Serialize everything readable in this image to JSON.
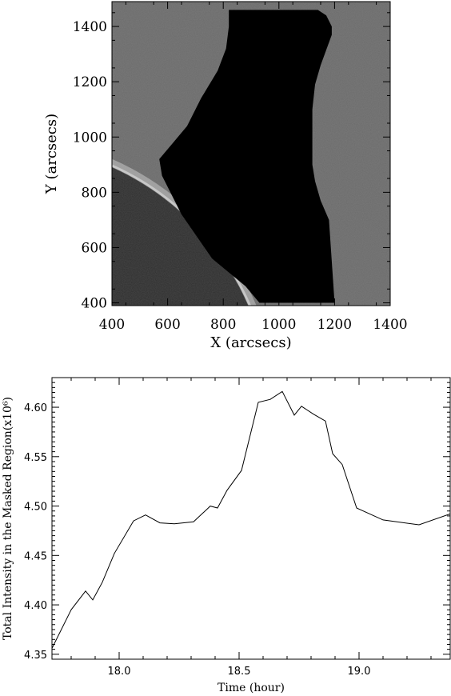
{
  "chart_data": [
    {
      "type": "image",
      "xlabel": "X (arcsecs)",
      "ylabel": "Y (arcsecs)",
      "xlim": [
        400,
        1400
      ],
      "ylim": [
        390,
        1490
      ],
      "xticks": [
        400,
        600,
        800,
        1000,
        1200,
        1400
      ],
      "yticks": [
        400,
        600,
        800,
        1000,
        1200,
        1400
      ],
      "colors": {
        "background": "#6b6b6b",
        "disk": "#2e2e2e",
        "limb": "#c8c8c8",
        "mask": "#000000"
      },
      "solar_disk": {
        "center": [
          0,
          0
        ],
        "radius_arcsec": 970
      },
      "mask_polygon": [
        [
          820,
          1460
        ],
        [
          1140,
          1460
        ],
        [
          1170,
          1440
        ],
        [
          1190,
          1400
        ],
        [
          1190,
          1370
        ],
        [
          1150,
          1260
        ],
        [
          1130,
          1190
        ],
        [
          1120,
          1100
        ],
        [
          1120,
          900
        ],
        [
          1130,
          840
        ],
        [
          1150,
          770
        ],
        [
          1180,
          700
        ],
        [
          1200,
          400
        ],
        [
          930,
          400
        ],
        [
          880,
          460
        ],
        [
          760,
          560
        ],
        [
          650,
          720
        ],
        [
          580,
          860
        ],
        [
          570,
          920
        ],
        [
          620,
          980
        ],
        [
          670,
          1040
        ],
        [
          720,
          1140
        ],
        [
          780,
          1240
        ],
        [
          810,
          1320
        ],
        [
          820,
          1400
        ]
      ]
    },
    {
      "type": "line",
      "xlabel": "Time (hour)",
      "ylabel": "Total Intensity in the Masked Region(x10⁶)",
      "xlim": [
        17.72,
        19.38
      ],
      "ylim": [
        4.345,
        4.63
      ],
      "xticks": [
        18.0,
        18.5,
        19.0
      ],
      "xtick_labels": [
        "18.0",
        "18.5",
        "19.0"
      ],
      "yticks": [
        4.35,
        4.4,
        4.45,
        4.5,
        4.55,
        4.6
      ],
      "ytick_labels": [
        "4.35",
        "4.40",
        "4.45",
        "4.50",
        "4.55",
        "4.60"
      ],
      "series": [
        {
          "x": [
            17.72,
            17.8,
            17.86,
            17.89,
            17.93,
            17.98,
            18.06,
            18.11,
            18.17,
            18.23,
            18.31,
            18.38,
            18.41,
            18.45,
            18.51,
            18.58,
            18.63,
            18.68,
            18.73,
            18.76,
            18.81,
            18.86,
            18.89,
            18.93,
            18.99,
            19.1,
            19.25,
            19.38
          ],
          "y": [
            4.356,
            4.395,
            4.414,
            4.405,
            4.423,
            4.452,
            4.485,
            4.491,
            4.483,
            4.482,
            4.484,
            4.5,
            4.498,
            4.516,
            4.536,
            4.605,
            4.608,
            4.616,
            4.592,
            4.601,
            4.593,
            4.586,
            4.553,
            4.542,
            4.498,
            4.486,
            4.481,
            4.492
          ]
        }
      ]
    }
  ]
}
